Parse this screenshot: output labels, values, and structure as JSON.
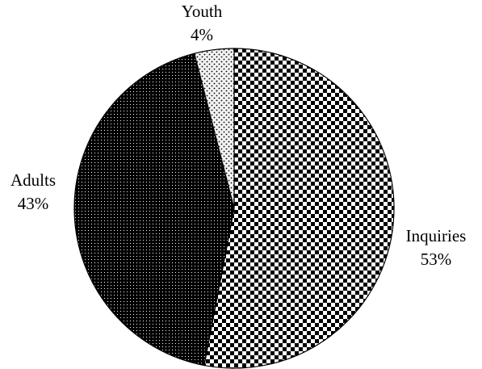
{
  "chart_data": {
    "type": "pie",
    "slices": [
      {
        "label": "Inquiries",
        "value": 53,
        "pct_label": "53%",
        "pattern": "checker-pattern"
      },
      {
        "label": "Adults",
        "value": 43,
        "pct_label": "43%",
        "pattern": "dense-dots-pattern"
      },
      {
        "label": "Youth",
        "value": 4,
        "pct_label": "4%",
        "pattern": "light-dots-pattern"
      }
    ],
    "start_angle_deg": 0,
    "direction": "clockwise",
    "legend": "none",
    "colors": {
      "outline": "#000000",
      "checker_dark": "#000000",
      "checker_light": "#ffffff",
      "dense_dots_bg": "#000000",
      "dense_dots_fg": "#ffffff",
      "light_dots_bg": "#f2f2f2",
      "light_dots_fg": "#000000"
    }
  }
}
